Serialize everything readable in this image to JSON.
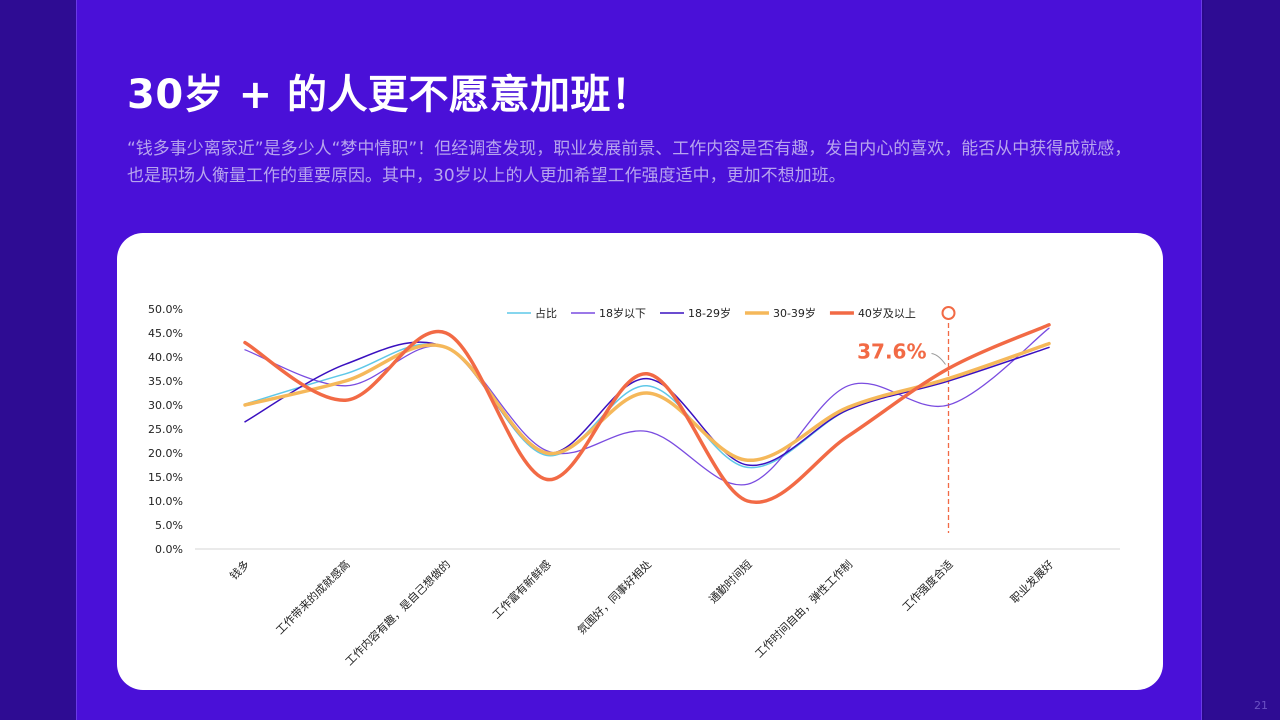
{
  "slide": {
    "title": "30岁 + 的人更不愿意加班！",
    "description": "“钱多事少离家近”是多少人“梦中情职”！但经调查发现，职业发展前景、工作内容是否有趣，发自内心的喜欢，能否从中获得成就感，也是职场人衡量工作的重要原因。其中，30岁以上的人更加希望工作强度适中，更加不想加班。",
    "page_number": "21"
  },
  "colors": {
    "background": "#4a10d8",
    "page_background": "#2a0a8a",
    "card": "#ffffff",
    "highlight": "#f26a45"
  },
  "chart_data": {
    "type": "line",
    "smooth": true,
    "categories": [
      "钱多",
      "工作带来的成就感高",
      "工作内容有趣，是自己想做的",
      "工作富有新鲜感",
      "氛围好，同事好相处",
      "通勤时间短",
      "工作时间自由，弹性工作制",
      "工作强度合适",
      "职业发展好"
    ],
    "ylim": [
      0,
      50
    ],
    "yticks": [
      "0.0%",
      "5.0%",
      "10.0%",
      "15.0%",
      "20.0%",
      "25.0%",
      "30.0%",
      "35.0%",
      "40.0%",
      "45.0%",
      "50.0%"
    ],
    "legend_position": "top",
    "series": [
      {
        "name": "占比",
        "color": "#5fc8e8",
        "width": 1.5,
        "values": [
          30.2,
          36.5,
          42.0,
          19.5,
          34.0,
          17.0,
          29.0,
          35.5,
          42.8
        ]
      },
      {
        "name": "18岁以下",
        "color": "#7a4ce0",
        "width": 1.3,
        "values": [
          41.5,
          34.0,
          42.0,
          20.5,
          24.5,
          13.5,
          34.0,
          30.0,
          46.0
        ]
      },
      {
        "name": "18-29岁",
        "color": "#3a10c0",
        "width": 1.5,
        "values": [
          26.5,
          38.5,
          42.0,
          20.0,
          35.5,
          17.5,
          29.0,
          35.0,
          42.0
        ]
      },
      {
        "name": "30-39岁",
        "color": "#f5b85a",
        "width": 3.5,
        "values": [
          30.0,
          35.0,
          42.0,
          20.0,
          32.5,
          18.5,
          29.5,
          35.5,
          42.8
        ]
      },
      {
        "name": "40岁及以上",
        "color": "#f26a45",
        "width": 3.5,
        "values": [
          43.0,
          31.0,
          45.0,
          14.5,
          36.5,
          10.0,
          23.5,
          37.6,
          46.7
        ]
      }
    ],
    "annotation": {
      "label": "37.6%",
      "category_index": 7,
      "series": "40岁及以上"
    }
  }
}
